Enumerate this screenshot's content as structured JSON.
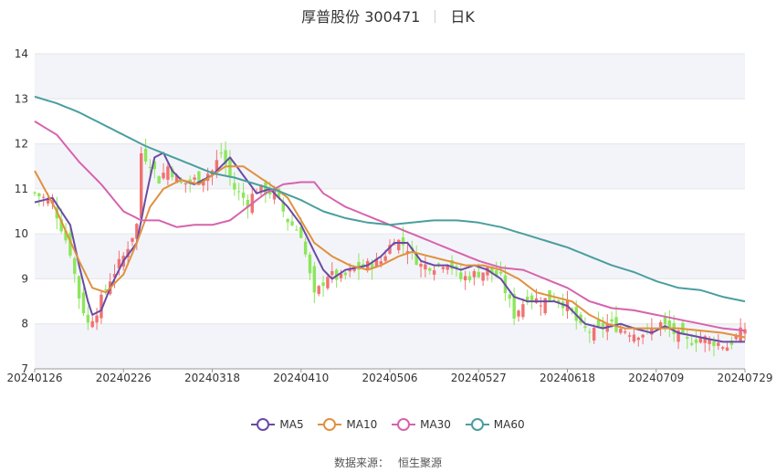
{
  "header": {
    "title": "厚普股份 300471",
    "period": "日K"
  },
  "source": {
    "label": "数据来源：",
    "name": "恒生聚源"
  },
  "colors": {
    "up": "#f07272",
    "down": "#8ce65a",
    "grid": "#e6e6e6",
    "band": "#f3f4f9",
    "axis": "#333333"
  },
  "legend": [
    {
      "name": "MA5",
      "color": "#6a4ba6"
    },
    {
      "name": "MA10",
      "color": "#e0913f"
    },
    {
      "name": "MA30",
      "color": "#d663ad"
    },
    {
      "name": "MA60",
      "color": "#4a9e9e"
    }
  ],
  "chart_data": {
    "type": "candlestick",
    "ylim": [
      7,
      14
    ],
    "yticks": [
      7,
      8,
      9,
      10,
      11,
      12,
      13,
      14
    ],
    "xtick_labels": [
      "20240126",
      "20240226",
      "20240318",
      "20240410",
      "20240506",
      "20240527",
      "20240618",
      "20240709",
      "20240729"
    ],
    "xtick_index": [
      0,
      20,
      40,
      60,
      80,
      100,
      120,
      140,
      160
    ],
    "n": 161,
    "close_anchors": [
      [
        0,
        10.9
      ],
      [
        4,
        10.7
      ],
      [
        8,
        9.6
      ],
      [
        10,
        8.6
      ],
      [
        12,
        8.0
      ],
      [
        14,
        8.3
      ],
      [
        17,
        9.0
      ],
      [
        20,
        9.5
      ],
      [
        23,
        10.2
      ],
      [
        24,
        11.8
      ],
      [
        26,
        11.6
      ],
      [
        28,
        11.2
      ],
      [
        30,
        11.5
      ],
      [
        33,
        11.1
      ],
      [
        36,
        11.2
      ],
      [
        40,
        11.4
      ],
      [
        42,
        11.8
      ],
      [
        45,
        11.0
      ],
      [
        48,
        10.7
      ],
      [
        50,
        11.0
      ],
      [
        54,
        10.9
      ],
      [
        57,
        10.3
      ],
      [
        60,
        10.0
      ],
      [
        63,
        8.6
      ],
      [
        66,
        9.1
      ],
      [
        69,
        9.0
      ],
      [
        72,
        9.2
      ],
      [
        75,
        9.3
      ],
      [
        78,
        9.4
      ],
      [
        81,
        9.9
      ],
      [
        84,
        9.7
      ],
      [
        87,
        9.3
      ],
      [
        90,
        9.3
      ],
      [
        93,
        9.4
      ],
      [
        96,
        9.0
      ],
      [
        99,
        9.1
      ],
      [
        102,
        9.2
      ],
      [
        105,
        9.0
      ],
      [
        108,
        8.2
      ],
      [
        111,
        8.6
      ],
      [
        114,
        8.5
      ],
      [
        117,
        8.6
      ],
      [
        120,
        8.4
      ],
      [
        123,
        7.9
      ],
      [
        126,
        7.8
      ],
      [
        129,
        8.0
      ],
      [
        132,
        7.9
      ],
      [
        135,
        7.8
      ],
      [
        138,
        7.8
      ],
      [
        141,
        8.0
      ],
      [
        144,
        7.8
      ],
      [
        147,
        7.6
      ],
      [
        150,
        7.7
      ],
      [
        153,
        7.6
      ],
      [
        156,
        7.5
      ],
      [
        158,
        7.7
      ],
      [
        160,
        7.9
      ]
    ],
    "ma_anchors": {
      "MA5": [
        [
          0,
          10.7
        ],
        [
          4,
          10.8
        ],
        [
          8,
          10.2
        ],
        [
          10,
          9.3
        ],
        [
          12,
          8.5
        ],
        [
          13,
          8.2
        ],
        [
          15,
          8.3
        ],
        [
          17,
          8.8
        ],
        [
          20,
          9.4
        ],
        [
          23,
          9.8
        ],
        [
          25,
          10.8
        ],
        [
          27,
          11.7
        ],
        [
          29,
          11.8
        ],
        [
          31,
          11.4
        ],
        [
          33,
          11.2
        ],
        [
          36,
          11.1
        ],
        [
          40,
          11.3
        ],
        [
          44,
          11.7
        ],
        [
          47,
          11.3
        ],
        [
          50,
          10.9
        ],
        [
          53,
          11.0
        ],
        [
          57,
          10.6
        ],
        [
          60,
          10.2
        ],
        [
          62,
          9.8
        ],
        [
          65,
          9.2
        ],
        [
          67,
          9.0
        ],
        [
          70,
          9.2
        ],
        [
          75,
          9.3
        ],
        [
          78,
          9.5
        ],
        [
          81,
          9.8
        ],
        [
          84,
          9.8
        ],
        [
          87,
          9.4
        ],
        [
          90,
          9.3
        ],
        [
          93,
          9.3
        ],
        [
          96,
          9.2
        ],
        [
          99,
          9.3
        ],
        [
          102,
          9.2
        ],
        [
          105,
          9.0
        ],
        [
          108,
          8.6
        ],
        [
          111,
          8.5
        ],
        [
          114,
          8.5
        ],
        [
          117,
          8.5
        ],
        [
          120,
          8.4
        ],
        [
          124,
          8.0
        ],
        [
          128,
          7.9
        ],
        [
          132,
          8.0
        ],
        [
          135,
          7.9
        ],
        [
          139,
          7.8
        ],
        [
          142,
          7.95
        ],
        [
          145,
          7.8
        ],
        [
          150,
          7.7
        ],
        [
          155,
          7.6
        ],
        [
          160,
          7.6
        ]
      ],
      "MA10": [
        [
          0,
          11.4
        ],
        [
          5,
          10.5
        ],
        [
          10,
          9.4
        ],
        [
          13,
          8.8
        ],
        [
          16,
          8.7
        ],
        [
          20,
          9.1
        ],
        [
          23,
          9.8
        ],
        [
          26,
          10.6
        ],
        [
          29,
          11.0
        ],
        [
          33,
          11.2
        ],
        [
          37,
          11.1
        ],
        [
          40,
          11.3
        ],
        [
          43,
          11.5
        ],
        [
          47,
          11.5
        ],
        [
          50,
          11.3
        ],
        [
          53,
          11.1
        ],
        [
          57,
          10.8
        ],
        [
          60,
          10.3
        ],
        [
          63,
          9.8
        ],
        [
          67,
          9.5
        ],
        [
          71,
          9.3
        ],
        [
          75,
          9.2
        ],
        [
          78,
          9.3
        ],
        [
          82,
          9.5
        ],
        [
          85,
          9.6
        ],
        [
          89,
          9.5
        ],
        [
          93,
          9.4
        ],
        [
          97,
          9.3
        ],
        [
          101,
          9.3
        ],
        [
          105,
          9.2
        ],
        [
          109,
          9.0
        ],
        [
          113,
          8.7
        ],
        [
          117,
          8.6
        ],
        [
          121,
          8.5
        ],
        [
          125,
          8.2
        ],
        [
          129,
          8.0
        ],
        [
          133,
          7.9
        ],
        [
          137,
          7.9
        ],
        [
          141,
          7.9
        ],
        [
          145,
          7.9
        ],
        [
          150,
          7.85
        ],
        [
          155,
          7.8
        ],
        [
          160,
          7.7
        ]
      ],
      "MA30": [
        [
          0,
          12.5
        ],
        [
          5,
          12.2
        ],
        [
          10,
          11.6
        ],
        [
          15,
          11.1
        ],
        [
          20,
          10.5
        ],
        [
          24,
          10.3
        ],
        [
          28,
          10.3
        ],
        [
          32,
          10.15
        ],
        [
          36,
          10.2
        ],
        [
          40,
          10.2
        ],
        [
          44,
          10.3
        ],
        [
          48,
          10.6
        ],
        [
          52,
          10.9
        ],
        [
          56,
          11.1
        ],
        [
          60,
          11.15
        ],
        [
          63,
          11.15
        ],
        [
          65,
          10.9
        ],
        [
          70,
          10.6
        ],
        [
          75,
          10.4
        ],
        [
          80,
          10.2
        ],
        [
          85,
          10.0
        ],
        [
          90,
          9.8
        ],
        [
          95,
          9.6
        ],
        [
          100,
          9.4
        ],
        [
          105,
          9.25
        ],
        [
          110,
          9.2
        ],
        [
          115,
          9.0
        ],
        [
          120,
          8.8
        ],
        [
          125,
          8.5
        ],
        [
          130,
          8.35
        ],
        [
          135,
          8.3
        ],
        [
          140,
          8.2
        ],
        [
          145,
          8.1
        ],
        [
          150,
          8.0
        ],
        [
          155,
          7.9
        ],
        [
          160,
          7.85
        ]
      ],
      "MA60": [
        [
          0,
          13.05
        ],
        [
          5,
          12.9
        ],
        [
          10,
          12.7
        ],
        [
          15,
          12.45
        ],
        [
          20,
          12.2
        ],
        [
          25,
          11.95
        ],
        [
          30,
          11.75
        ],
        [
          35,
          11.55
        ],
        [
          40,
          11.35
        ],
        [
          45,
          11.25
        ],
        [
          50,
          11.1
        ],
        [
          55,
          10.95
        ],
        [
          60,
          10.75
        ],
        [
          65,
          10.5
        ],
        [
          70,
          10.35
        ],
        [
          75,
          10.25
        ],
        [
          80,
          10.2
        ],
        [
          85,
          10.25
        ],
        [
          90,
          10.3
        ],
        [
          95,
          10.3
        ],
        [
          100,
          10.25
        ],
        [
          105,
          10.15
        ],
        [
          110,
          10.0
        ],
        [
          115,
          9.85
        ],
        [
          120,
          9.7
        ],
        [
          125,
          9.5
        ],
        [
          130,
          9.3
        ],
        [
          135,
          9.15
        ],
        [
          140,
          8.95
        ],
        [
          145,
          8.8
        ],
        [
          150,
          8.75
        ],
        [
          155,
          8.6
        ],
        [
          160,
          8.5
        ]
      ]
    }
  }
}
